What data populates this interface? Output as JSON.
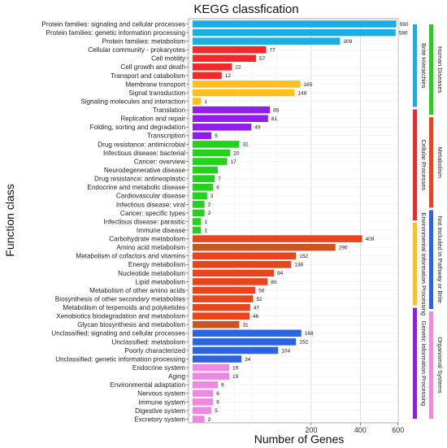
{
  "chart_data": {
    "type": "bar",
    "orientation": "horizontal",
    "title": "KEGG classfication",
    "xlabel": "Number of Genes",
    "ylabel": "Function class",
    "x_scale": "sqrt",
    "xlim": [
      0,
      700
    ],
    "xticks": [
      200,
      400,
      600
    ],
    "grid": true,
    "categories": [
      "Protein families: signaling and cellular processes",
      "Protein families: genetic information processing",
      "Protein families: metabolism",
      "Cellular community - prokaryotes",
      "Cell motility",
      "Cell growth and death",
      "Transport and catabolism",
      "Membrane transport",
      "Signal transduction",
      "Signaling molecules and interaction",
      "Translation",
      "Replication and repair",
      "Folding, sorting and degradation",
      "Transcription",
      "Drug resistance: antimicrobial",
      "Infectious disease: bacterial",
      "Cancer: overview",
      "Neurodegenerative disease",
      "Drug resistance: antineoplastic",
      "Endocrine and metabolic disease",
      "Cardiovascular disease",
      "Infectious disease: viral",
      "Cancer: specific types",
      "Infectious disease: parasitic",
      "Immune disease",
      "Carbohydrate metabolism",
      "Amino acid metabolism",
      "Metabolism of cofactors and vitamins",
      "Energy metabolism",
      "Nucleotide metabolism",
      "Lipid metabolism",
      "Metabolism of other amino acids",
      "Biosynthesis of other secondary metabolites",
      "Metabolism of terpenoids and polyketides",
      "Xenobiotics biodegradation and metabolism",
      "Glycan biosynthesis and metabolism",
      "Unclassified: signaling and cellular processes",
      "Unclassified: metabolism",
      "Poorly characterized",
      "Unclassified: genetic information processing",
      "Endocrine system",
      "Aging",
      "Environmental adaptation",
      "Nervous system",
      "Immune system",
      "Digestive system",
      "Excretory system"
    ],
    "values": [
      590,
      586,
      309,
      77,
      57,
      22,
      12,
      165,
      148,
      1,
      85,
      81,
      49,
      5,
      31,
      20,
      17,
      9,
      7,
      6,
      3,
      2,
      2,
      1,
      1,
      409,
      290,
      152,
      138,
      94,
      80,
      56,
      52,
      47,
      46,
      31,
      168,
      152,
      104,
      34,
      19,
      19,
      9,
      6,
      6,
      5,
      2
    ],
    "value_labels": [
      "590",
      "586",
      "309",
      "77",
      "57",
      "22",
      "12",
      "165",
      "148",
      "1",
      "85",
      "81",
      "49",
      "5",
      "31",
      "20",
      "17",
      "",
      "7",
      "6",
      "3",
      "2",
      "2",
      "1",
      "1",
      "409",
      "290",
      "152",
      "138",
      "94",
      "80",
      "56",
      "52",
      "47",
      "46",
      "31",
      "168",
      "152",
      "104",
      "34",
      "19",
      "19",
      "9",
      "6",
      "6",
      "5",
      "2"
    ],
    "bar_colors": [
      "#1baee0",
      "#1baee0",
      "#1baee0",
      "#ee2a2a",
      "#ee2a2a",
      "#ee2a2a",
      "#ee2a2a",
      "#ffc01e",
      "#ffc01e",
      "#ffc01e",
      "#8f1fe8",
      "#8f1fe8",
      "#8f1fe8",
      "#8f1fe8",
      "#24d11c",
      "#24d11c",
      "#24d11c",
      "#24d11c",
      "#24d11c",
      "#24d11c",
      "#24d11c",
      "#24d11c",
      "#24d11c",
      "#24d11c",
      "#24d11c",
      "#e8441e",
      "#c8561e",
      "#e8441e",
      "#e8441e",
      "#e8441e",
      "#e8441e",
      "#e8441e",
      "#e8441e",
      "#e8441e",
      "#e8441e",
      "#c8561e",
      "#2d63e0",
      "#2d63e0",
      "#2d63e0",
      "#2d63e0",
      "#ef88e4",
      "#ef88e4",
      "#ef88e4",
      "#ef88e4",
      "#ef88e4",
      "#ef88e4",
      "#ef88e4"
    ],
    "inner_groups": [
      {
        "label": "Brite Hierarchies",
        "color": "#1baee0",
        "from": 0,
        "to": 2
      },
      {
        "label": "Cellular Processes",
        "color": "#ee2a2a",
        "from": 3,
        "to": 6
      },
      {
        "label": "Environmental Information Processing",
        "color": "#ffc01e",
        "from": 7,
        "to": 9
      },
      {
        "label": "Genetic Information Processing",
        "color": "#8f1fe8",
        "from": 10,
        "to": 13
      }
    ],
    "outer_groups": [
      {
        "label": "Human Diseases",
        "color": "#24d11c",
        "from": 0,
        "to": 10
      },
      {
        "label": "Metabolism",
        "color": "#e8441e",
        "from": 11,
        "to": 21
      },
      {
        "label": "Not Included in Pathway or Brite",
        "color": "#2d63e0",
        "from": 22,
        "to": 33
      },
      {
        "label": "Organismal Systems",
        "color": "#ef88e4",
        "from": 34,
        "to": 46
      }
    ]
  }
}
